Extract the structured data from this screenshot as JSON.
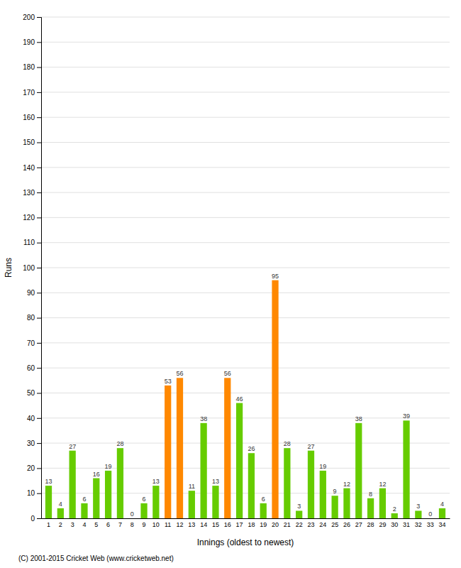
{
  "chart_data": {
    "type": "bar",
    "categories": [
      "1",
      "2",
      "3",
      "4",
      "5",
      "6",
      "7",
      "8",
      "9",
      "10",
      "11",
      "12",
      "13",
      "14",
      "15",
      "16",
      "17",
      "18",
      "19",
      "20",
      "21",
      "22",
      "23",
      "24",
      "25",
      "26",
      "27",
      "28",
      "29",
      "30",
      "31",
      "32",
      "33",
      "34"
    ],
    "values": [
      13,
      4,
      27,
      6,
      16,
      19,
      28,
      0,
      6,
      13,
      53,
      56,
      11,
      38,
      13,
      56,
      46,
      26,
      6,
      95,
      28,
      3,
      27,
      19,
      9,
      12,
      38,
      8,
      12,
      2,
      39,
      3,
      0,
      4
    ],
    "colors": [
      "#66cc00",
      "#66cc00",
      "#66cc00",
      "#66cc00",
      "#66cc00",
      "#66cc00",
      "#66cc00",
      "#66cc00",
      "#66cc00",
      "#66cc00",
      "#ff8800",
      "#ff8800",
      "#66cc00",
      "#66cc00",
      "#66cc00",
      "#ff8800",
      "#66cc00",
      "#66cc00",
      "#66cc00",
      "#ff8800",
      "#66cc00",
      "#66cc00",
      "#66cc00",
      "#66cc00",
      "#66cc00",
      "#66cc00",
      "#66cc00",
      "#66cc00",
      "#66cc00",
      "#66cc00",
      "#66cc00",
      "#66cc00",
      "#66cc00",
      "#66cc00"
    ],
    "x_label": "Innings (oldest to newest)",
    "y_label": "Runs",
    "ylim": [
      0,
      200
    ],
    "yticks": [
      0,
      10,
      20,
      30,
      40,
      50,
      60,
      70,
      80,
      90,
      100,
      110,
      120,
      130,
      140,
      150,
      160,
      170,
      180,
      190,
      200
    ],
    "grid": true,
    "data_labels": true,
    "annotations": [
      "(C) 2001-2015 Cricket Web (www.cricketweb.net)"
    ]
  }
}
